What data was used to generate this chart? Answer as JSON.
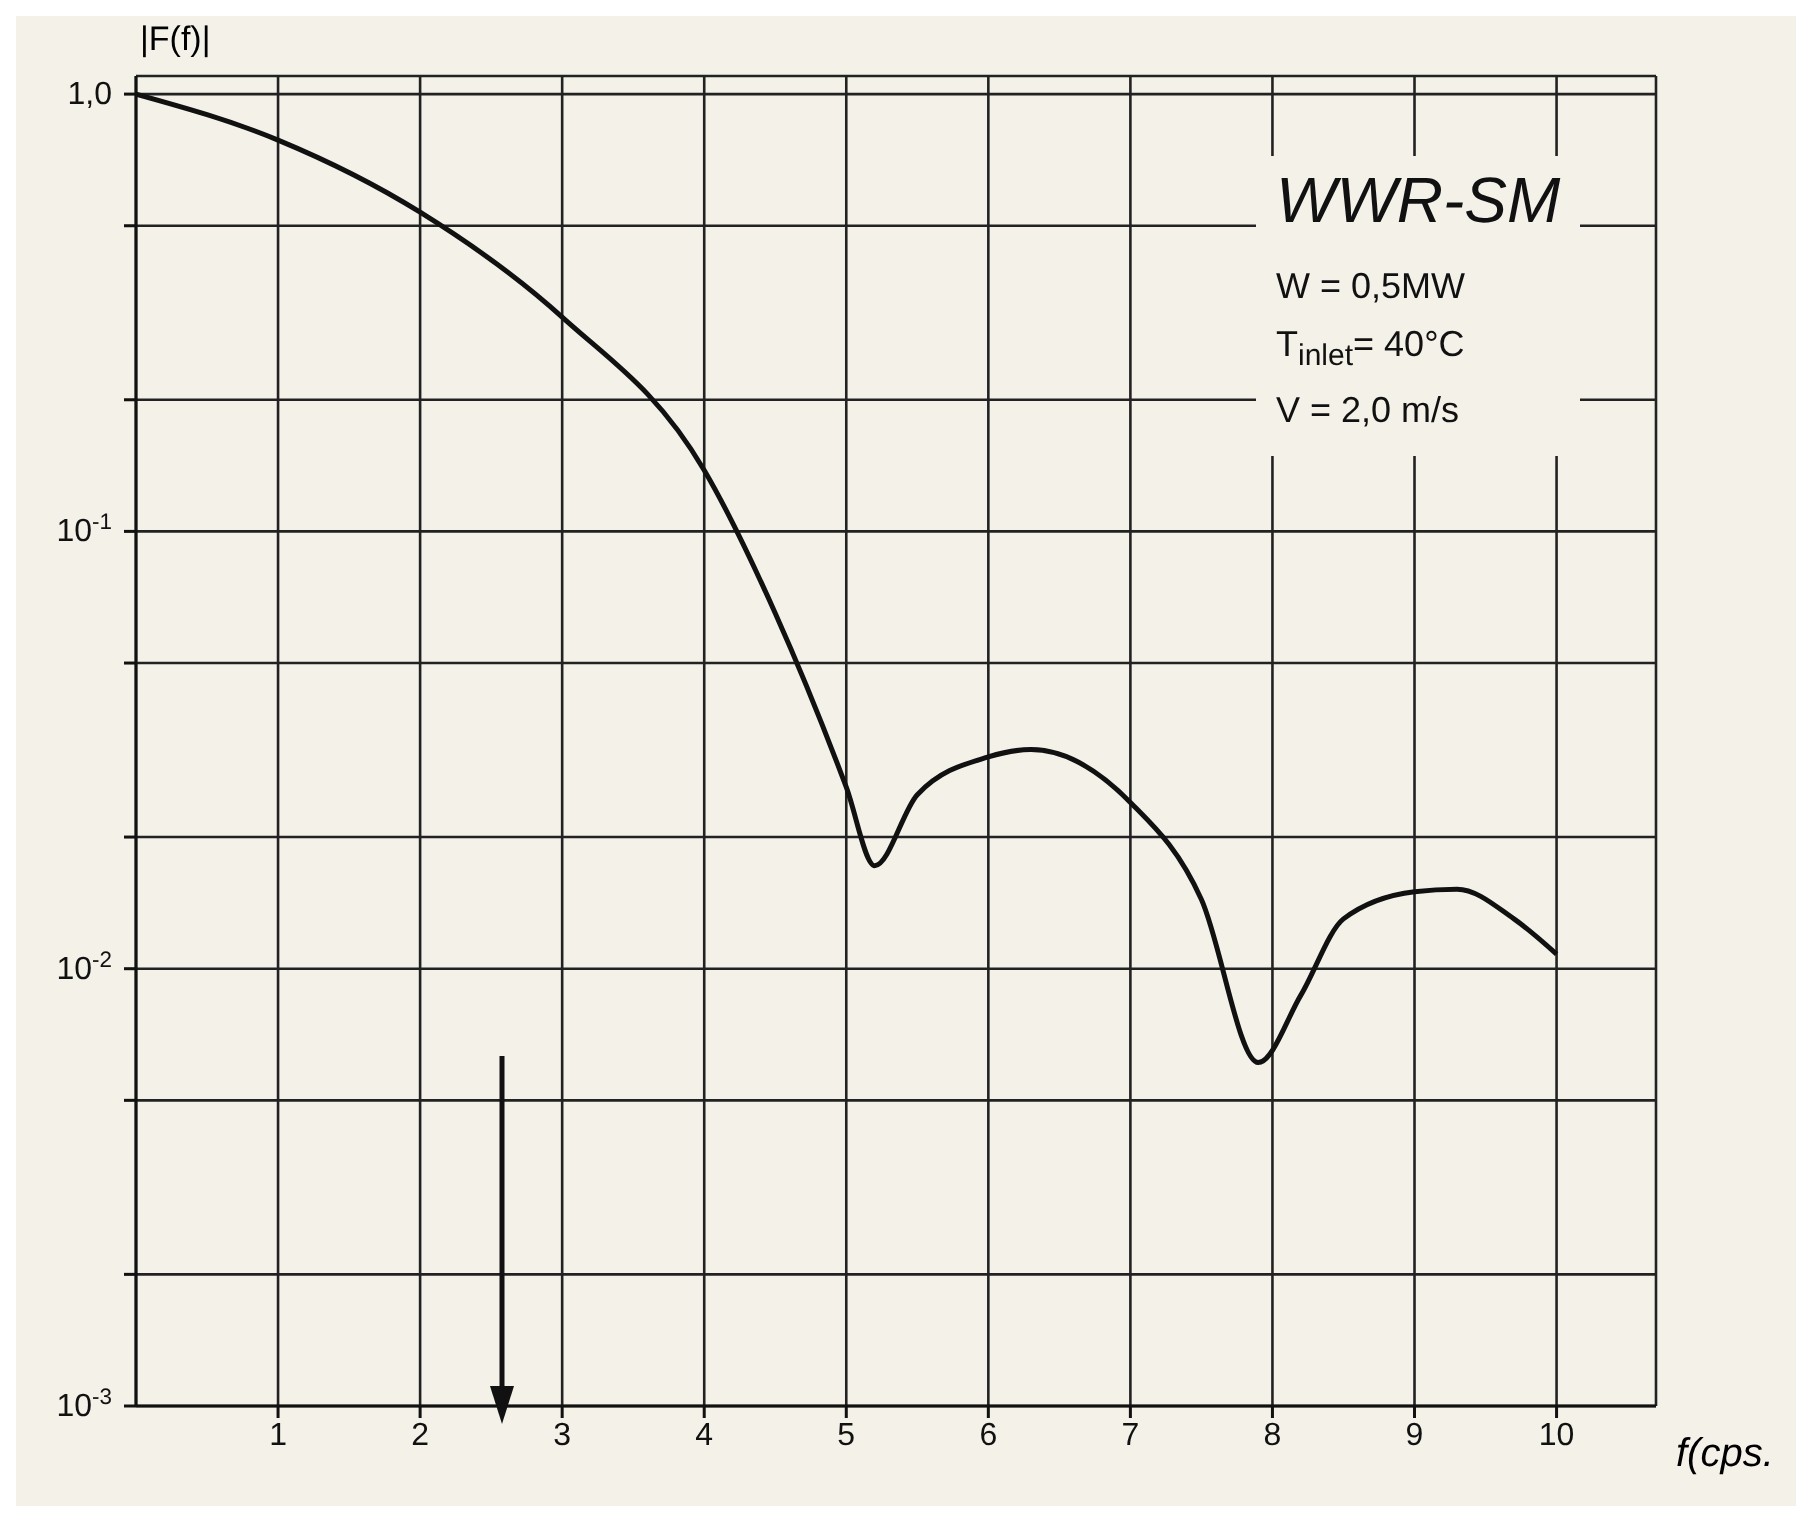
{
  "chart_data": {
    "type": "line",
    "xlabel": "f(cps.",
    "ylabel": "|F(f)|",
    "annotations": [
      "WWR-SM",
      "W = 0,5MW",
      "T$_{inlet}$= 40°C",
      "V = 2,0  m/s"
    ],
    "x": [
      0,
      1,
      2,
      3,
      4,
      4.5,
      5,
      5.2,
      5.5,
      6,
      6.3,
      7,
      7.5,
      7.9,
      8.2,
      8.5,
      9,
      9.3,
      9.7,
      10
    ],
    "series": [
      {
        "color": "#111111",
        "values": [
          1.0,
          0.785,
          0.537,
          0.309,
          0.138,
          0.065,
          0.026,
          0.0172,
          0.025,
          0.0305,
          0.0317,
          0.024,
          0.0144,
          0.0061,
          0.0087,
          0.013,
          0.015,
          0.0152,
          0.013,
          0.0108
        ]
      }
    ],
    "log": "y",
    "xlim": [
      0,
      10.7
    ],
    "ylim": [
      0.001,
      1.1
    ],
    "xticks": [
      1,
      2,
      3,
      4,
      5,
      6,
      7,
      8,
      9,
      10
    ],
    "yticks": [
      {
        "value": 0.001,
        "label": "10$^{-3}$"
      },
      {
        "value": 0.002,
        "label": null
      },
      {
        "value": 0.005,
        "label": null
      },
      {
        "value": 0.01,
        "label": "10$^{-2}$"
      },
      {
        "value": 0.02,
        "label": null
      },
      {
        "value": 0.05,
        "label": null
      },
      {
        "value": 0.1,
        "label": "10$^{-1}$"
      },
      {
        "value": 0.2,
        "label": null
      },
      {
        "value": 0.5,
        "label": null
      },
      {
        "value": 1,
        "label": "1,0"
      }
    ],
    "grid": true,
    "marker": "none",
    "line_style": "solid"
  }
}
